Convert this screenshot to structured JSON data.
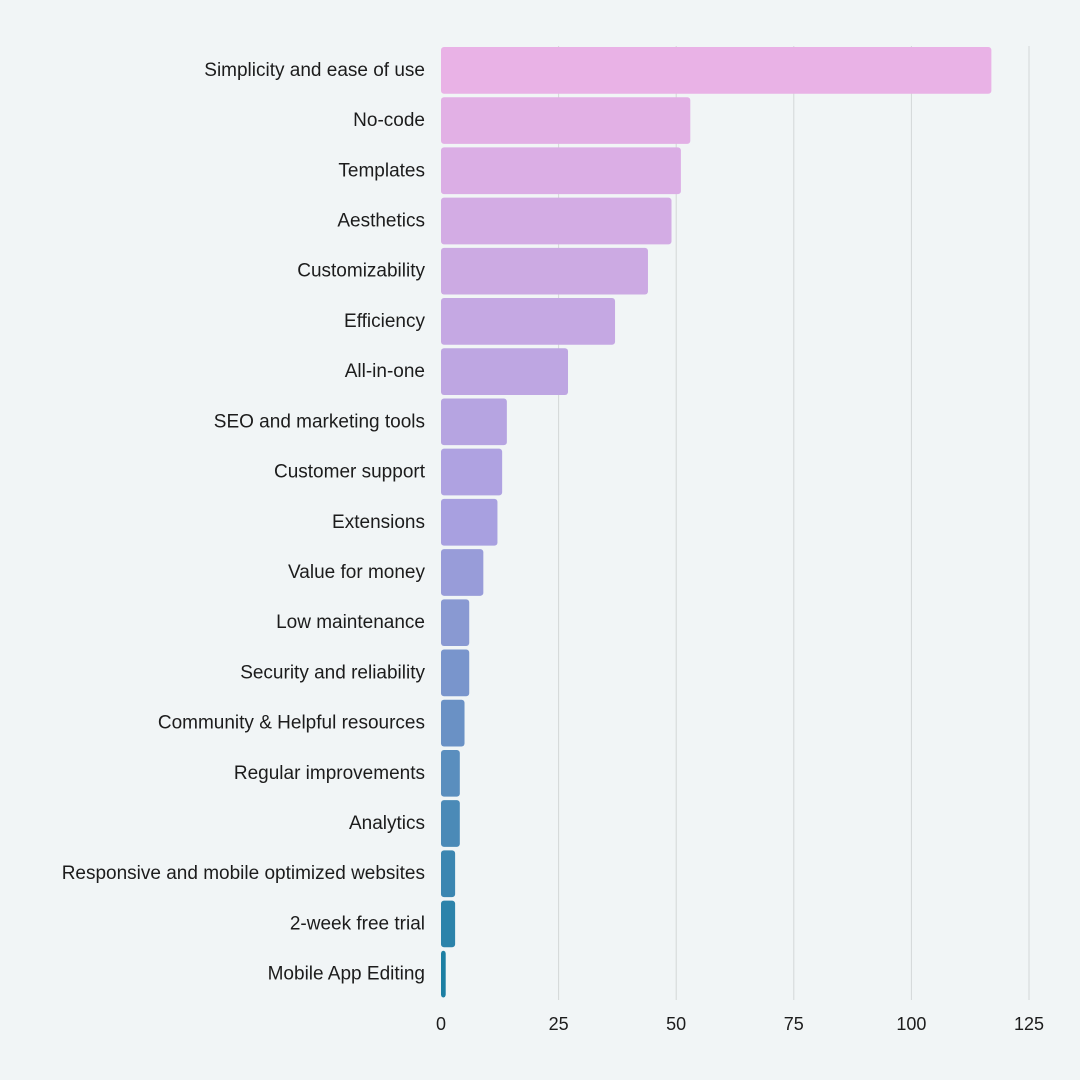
{
  "chart_data": {
    "type": "bar",
    "orientation": "horizontal",
    "categories": [
      "Simplicity and ease of use",
      "No-code",
      "Templates",
      "Aesthetics",
      "Customizability",
      "Efficiency",
      "All-in-one",
      "SEO and marketing tools",
      "Customer support",
      "Extensions",
      "Value for money",
      "Low maintenance",
      "Security and reliability",
      "Community & Helpful resources",
      "Regular improvements",
      "Analytics",
      "Responsive and mobile optimized websites",
      "2-week free trial",
      "Mobile App Editing"
    ],
    "values": [
      117,
      53,
      51,
      49,
      44,
      37,
      27,
      14,
      13,
      12,
      9,
      6,
      6,
      5,
      4,
      4,
      3,
      3,
      1
    ],
    "xlim": [
      0,
      125
    ],
    "xticks": [
      0,
      25,
      50,
      75,
      100,
      125
    ],
    "grid": "vertical",
    "legend": "none",
    "colors": {
      "gradient_start": "#e9b2e6",
      "gradient_mid": "#a8a0e0",
      "gradient_end": "#1c7fa3",
      "grid": "#d3d7d8",
      "background": "#f1f5f6",
      "text": "#1c1c1c"
    }
  }
}
